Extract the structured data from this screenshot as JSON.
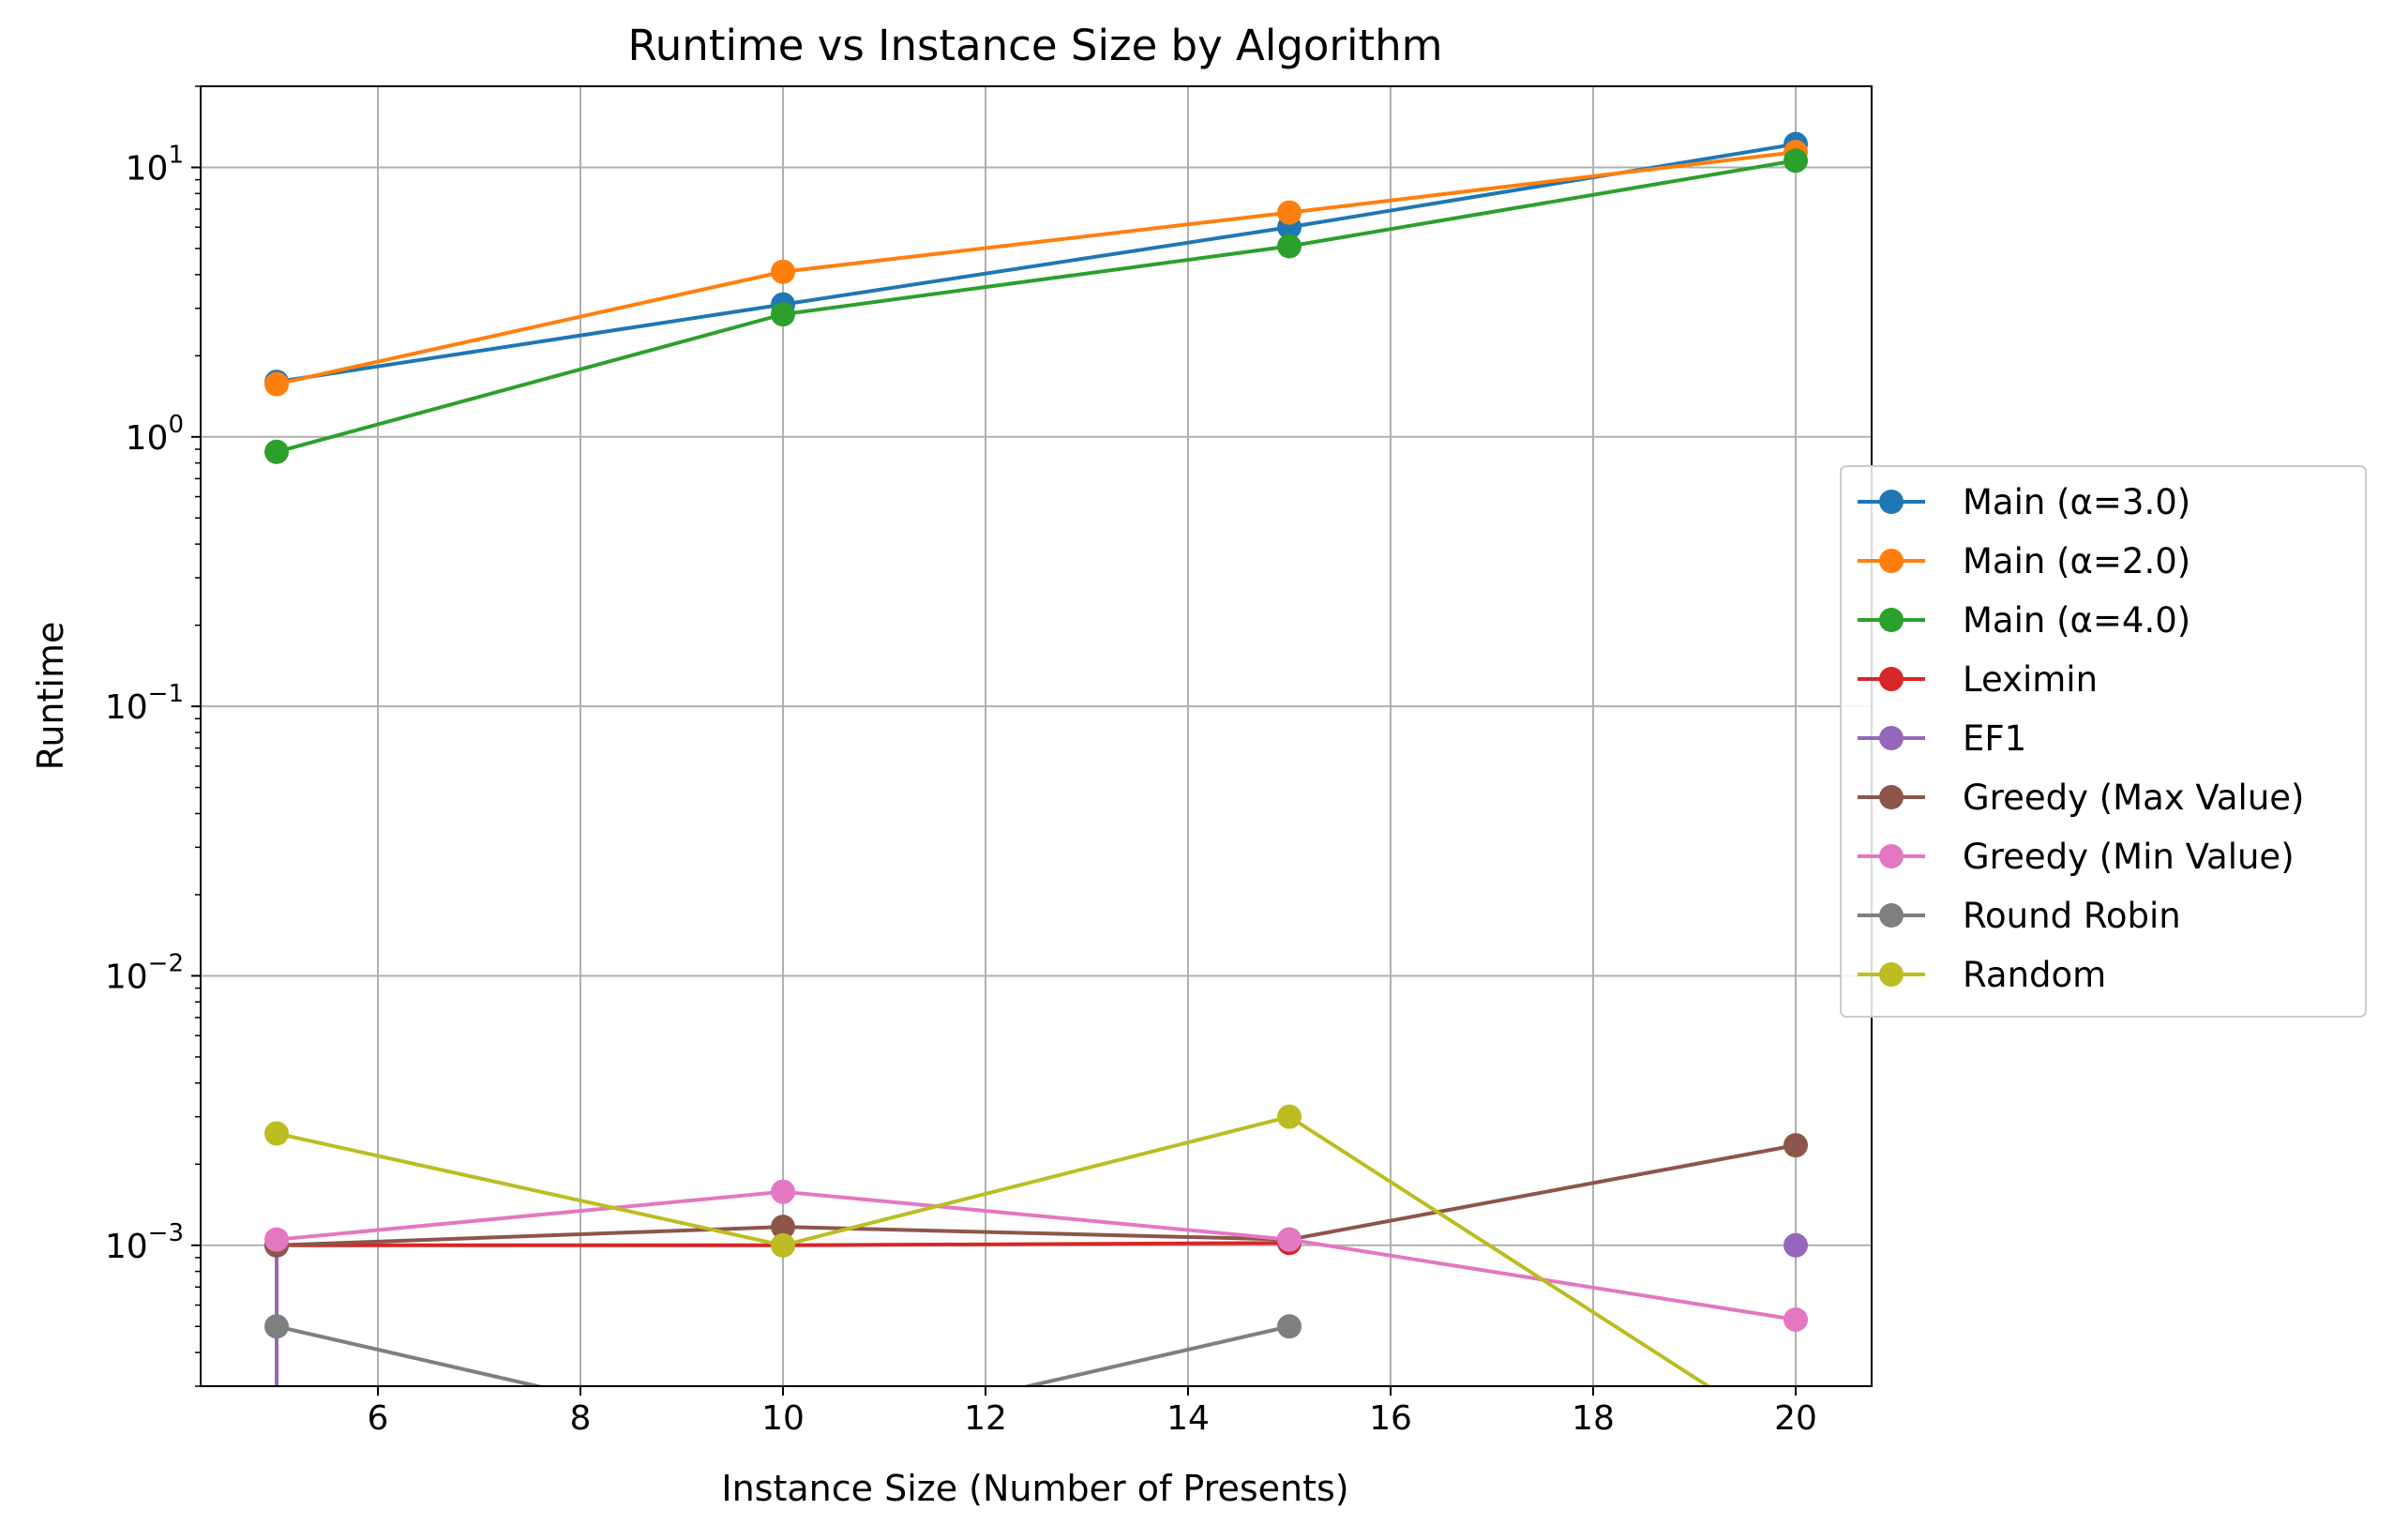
{
  "chart_data": {
    "type": "line",
    "title": "Runtime vs Instance Size by Algorithm",
    "xlabel": "Instance Size (Number of Presents)",
    "ylabel": "Runtime",
    "yscale": "log",
    "xlim": [
      4.25,
      20.75
    ],
    "ylim": [
      0.0003,
      20
    ],
    "xticks": [
      6,
      8,
      10,
      12,
      14,
      16,
      18,
      20
    ],
    "xtick_labels": [
      "6",
      "8",
      "10",
      "12",
      "14",
      "16",
      "18",
      "20"
    ],
    "yticks": [
      0.001,
      0.01,
      0.1,
      1,
      10
    ],
    "ytick_labels": [
      {
        "base": "10",
        "exp": "−3"
      },
      {
        "base": "10",
        "exp": "−2"
      },
      {
        "base": "10",
        "exp": "−1"
      },
      {
        "base": "10",
        "exp": "0"
      },
      {
        "base": "10",
        "exp": "1"
      }
    ],
    "grid": true,
    "legend_position": "center-right",
    "x": [
      5,
      10,
      15,
      20
    ],
    "series": [
      {
        "name": "Main (α=3.0)",
        "color": "#1f77b4",
        "values": [
          1.6,
          3.1,
          6.0,
          12.2
        ]
      },
      {
        "name": "Main (α=2.0)",
        "color": "#ff7f0e",
        "values": [
          1.57,
          4.1,
          6.8,
          11.4
        ]
      },
      {
        "name": "Main (α=4.0)",
        "color": "#2ca02c",
        "values": [
          0.88,
          2.85,
          5.1,
          10.6
        ]
      },
      {
        "name": "Leximin",
        "color": "#d62728",
        "values": [
          0.001,
          0.001,
          0.00102,
          null
        ]
      },
      {
        "name": "EF1",
        "color": "#9467bd",
        "values": [
          0.0,
          null,
          null,
          0.001
        ],
        "drop_to_zero": [
          [
            5,
            0.001
          ],
          [
            20,
            0.0
          ]
        ]
      },
      {
        "name": "Greedy (Max Value)",
        "color": "#8c564b",
        "values": [
          0.001,
          0.00117,
          0.00105,
          0.00235
        ]
      },
      {
        "name": "Greedy (Min Value)",
        "color": "#e377c2",
        "values": [
          0.00105,
          0.00158,
          0.00105,
          0.00053
        ]
      },
      {
        "name": "Round Robin",
        "color": "#7f7f7f",
        "values": [
          0.0005,
          0.0,
          0.0005,
          null
        ]
      },
      {
        "name": "Random",
        "color": "#bcbd22",
        "values": [
          0.0026,
          0.001,
          0.003,
          0.0
        ]
      }
    ]
  }
}
